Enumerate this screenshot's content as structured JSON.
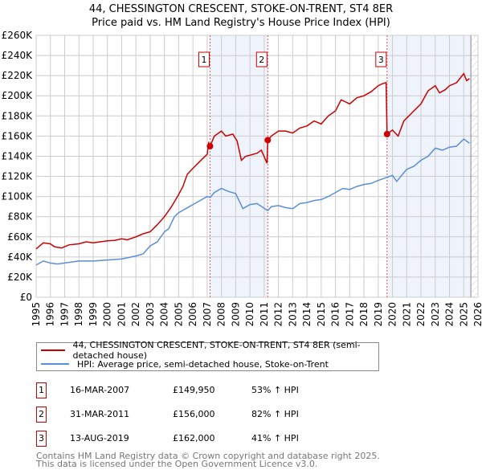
{
  "title": {
    "line1": "44, CHESSINGTON CRESCENT, STOKE-ON-TRENT, ST4 8ER",
    "line2": "Price paid vs. HM Land Registry's House Price Index (HPI)"
  },
  "legend": {
    "property": "44, CHESSINGTON CRESCENT, STOKE-ON-TRENT, ST4 8ER (semi-detached house)",
    "hpi": "HPI: Average price, semi-detached house, Stoke-on-Trent"
  },
  "colors": {
    "property": "#cc0000",
    "hpi": "#5b8fd6",
    "shade": "#eef3fc"
  },
  "sales": [
    {
      "num": "1",
      "date": "16-MAR-2007",
      "price": "£149,950",
      "hpi": "53% ↑ HPI"
    },
    {
      "num": "2",
      "date": "31-MAR-2011",
      "price": "£156,000",
      "hpi": "82% ↑ HPI"
    },
    {
      "num": "3",
      "date": "13-AUG-2019",
      "price": "£162,000",
      "hpi": "41% ↑ HPI"
    }
  ],
  "footer": {
    "line1": "Contains HM Land Registry data © Crown copyright and database right 2025.",
    "line2": "This data is licensed under the Open Government Licence v3.0."
  },
  "chart_data": {
    "type": "line",
    "xlim": [
      1995,
      2026
    ],
    "ylim": [
      0,
      260000
    ],
    "x_ticks": [
      "1995",
      "1996",
      "1997",
      "1998",
      "1999",
      "2000",
      "2001",
      "2002",
      "2003",
      "2004",
      "2005",
      "2006",
      "2007",
      "2008",
      "2009",
      "2010",
      "2011",
      "2012",
      "2013",
      "2014",
      "2015",
      "2016",
      "2017",
      "2018",
      "2019",
      "2020",
      "2021",
      "2022",
      "2023",
      "2024",
      "2025",
      "2026"
    ],
    "y_ticks": [
      {
        "v": 0,
        "l": "£0"
      },
      {
        "v": 20000,
        "l": "£20K"
      },
      {
        "v": 40000,
        "l": "£40K"
      },
      {
        "v": 60000,
        "l": "£60K"
      },
      {
        "v": 80000,
        "l": "£80K"
      },
      {
        "v": 100000,
        "l": "£100K"
      },
      {
        "v": 120000,
        "l": "£120K"
      },
      {
        "v": 140000,
        "l": "£140K"
      },
      {
        "v": 160000,
        "l": "£160K"
      },
      {
        "v": 180000,
        "l": "£180K"
      },
      {
        "v": 200000,
        "l": "£200K"
      },
      {
        "v": 220000,
        "l": "£220K"
      },
      {
        "v": 240000,
        "l": "£240K"
      },
      {
        "v": 260000,
        "l": "£260K"
      }
    ],
    "grid": true,
    "shaded_ranges": [
      [
        2007.2,
        2011.25
      ],
      [
        2019.6,
        2025.5
      ]
    ],
    "hatched_after": 2025.5,
    "sale_points": [
      {
        "label": "1",
        "x": 2007.2,
        "y": 149950
      },
      {
        "label": "2",
        "x": 2011.25,
        "y": 156000
      },
      {
        "label": "3",
        "x": 2019.62,
        "y": 162000
      }
    ],
    "series": [
      {
        "name": "property",
        "points": [
          [
            1995,
            48000
          ],
          [
            1995.5,
            54000
          ],
          [
            1996,
            53000
          ],
          [
            1996.3,
            50000
          ],
          [
            1996.8,
            49000
          ],
          [
            1997.3,
            52000
          ],
          [
            1998,
            53000
          ],
          [
            1998.5,
            55000
          ],
          [
            1999,
            54000
          ],
          [
            1999.5,
            55000
          ],
          [
            2000,
            56000
          ],
          [
            2000.5,
            56500
          ],
          [
            2001,
            58000
          ],
          [
            2001.4,
            57000
          ],
          [
            2002,
            60000
          ],
          [
            2002.5,
            63000
          ],
          [
            2003,
            65000
          ],
          [
            2003.5,
            72000
          ],
          [
            2004,
            80000
          ],
          [
            2004.5,
            90000
          ],
          [
            2005,
            102000
          ],
          [
            2005.3,
            110000
          ],
          [
            2005.6,
            122000
          ],
          [
            2006,
            128000
          ],
          [
            2006.5,
            135000
          ],
          [
            2007,
            142000
          ],
          [
            2007.1,
            153000
          ],
          [
            2007.2,
            149950
          ],
          [
            2007.5,
            160000
          ],
          [
            2008,
            165000
          ],
          [
            2008.3,
            160000
          ],
          [
            2008.8,
            162000
          ],
          [
            2009.1,
            155000
          ],
          [
            2009.4,
            136000
          ],
          [
            2009.7,
            140000
          ],
          [
            2010,
            141000
          ],
          [
            2010.5,
            143000
          ],
          [
            2010.8,
            146000
          ],
          [
            2011.2,
            133000
          ],
          [
            2011.25,
            156000
          ],
          [
            2011.5,
            160000
          ],
          [
            2012,
            165000
          ],
          [
            2012.5,
            165000
          ],
          [
            2013,
            163000
          ],
          [
            2013.5,
            168000
          ],
          [
            2014,
            170000
          ],
          [
            2014.5,
            175000
          ],
          [
            2015,
            172000
          ],
          [
            2015.5,
            180000
          ],
          [
            2016,
            185000
          ],
          [
            2016.4,
            196000
          ],
          [
            2017,
            192000
          ],
          [
            2017.5,
            198000
          ],
          [
            2018,
            200000
          ],
          [
            2018.5,
            204000
          ],
          [
            2019,
            210000
          ],
          [
            2019.3,
            212000
          ],
          [
            2019.55,
            213000
          ],
          [
            2019.62,
            162000
          ],
          [
            2020,
            166000
          ],
          [
            2020.4,
            160000
          ],
          [
            2020.8,
            175000
          ],
          [
            2021.5,
            185000
          ],
          [
            2022,
            192000
          ],
          [
            2022.5,
            205000
          ],
          [
            2023,
            210000
          ],
          [
            2023.3,
            203000
          ],
          [
            2023.7,
            206000
          ],
          [
            2024,
            210000
          ],
          [
            2024.5,
            213000
          ],
          [
            2025,
            222000
          ],
          [
            2025.2,
            215000
          ],
          [
            2025.4,
            217000
          ]
        ]
      },
      {
        "name": "hpi",
        "points": [
          [
            1995,
            32000
          ],
          [
            1995.5,
            36000
          ],
          [
            1996,
            34000
          ],
          [
            1996.5,
            33000
          ],
          [
            1997,
            34000
          ],
          [
            1998,
            36000
          ],
          [
            1999,
            36000
          ],
          [
            2000,
            37000
          ],
          [
            2001,
            38000
          ],
          [
            2002,
            41000
          ],
          [
            2002.5,
            43000
          ],
          [
            2003,
            51000
          ],
          [
            2003.5,
            55000
          ],
          [
            2004,
            65000
          ],
          [
            2004.3,
            68000
          ],
          [
            2004.7,
            80000
          ],
          [
            2005,
            84000
          ],
          [
            2005.5,
            88000
          ],
          [
            2006,
            92000
          ],
          [
            2006.5,
            96000
          ],
          [
            2007,
            100000
          ],
          [
            2007.2,
            99000
          ],
          [
            2007.5,
            104000
          ],
          [
            2008,
            108000
          ],
          [
            2008.5,
            105000
          ],
          [
            2009,
            103000
          ],
          [
            2009.5,
            88000
          ],
          [
            2010,
            92000
          ],
          [
            2010.5,
            93000
          ],
          [
            2011.25,
            86000
          ],
          [
            2011.5,
            90000
          ],
          [
            2012,
            91000
          ],
          [
            2012.5,
            89000
          ],
          [
            2013,
            88000
          ],
          [
            2013.5,
            93000
          ],
          [
            2014,
            94000
          ],
          [
            2014.5,
            96000
          ],
          [
            2015,
            97000
          ],
          [
            2015.5,
            100000
          ],
          [
            2016,
            104000
          ],
          [
            2016.5,
            108000
          ],
          [
            2017,
            107000
          ],
          [
            2017.5,
            110000
          ],
          [
            2018,
            112000
          ],
          [
            2018.5,
            113000
          ],
          [
            2019,
            116000
          ],
          [
            2019.6,
            119000
          ],
          [
            2020,
            121000
          ],
          [
            2020.3,
            115000
          ],
          [
            2020.7,
            122000
          ],
          [
            2021,
            127000
          ],
          [
            2021.5,
            130000
          ],
          [
            2022,
            136000
          ],
          [
            2022.5,
            140000
          ],
          [
            2023,
            148000
          ],
          [
            2023.5,
            146000
          ],
          [
            2024,
            149000
          ],
          [
            2024.5,
            150000
          ],
          [
            2025,
            157000
          ],
          [
            2025.4,
            153000
          ]
        ]
      }
    ]
  }
}
